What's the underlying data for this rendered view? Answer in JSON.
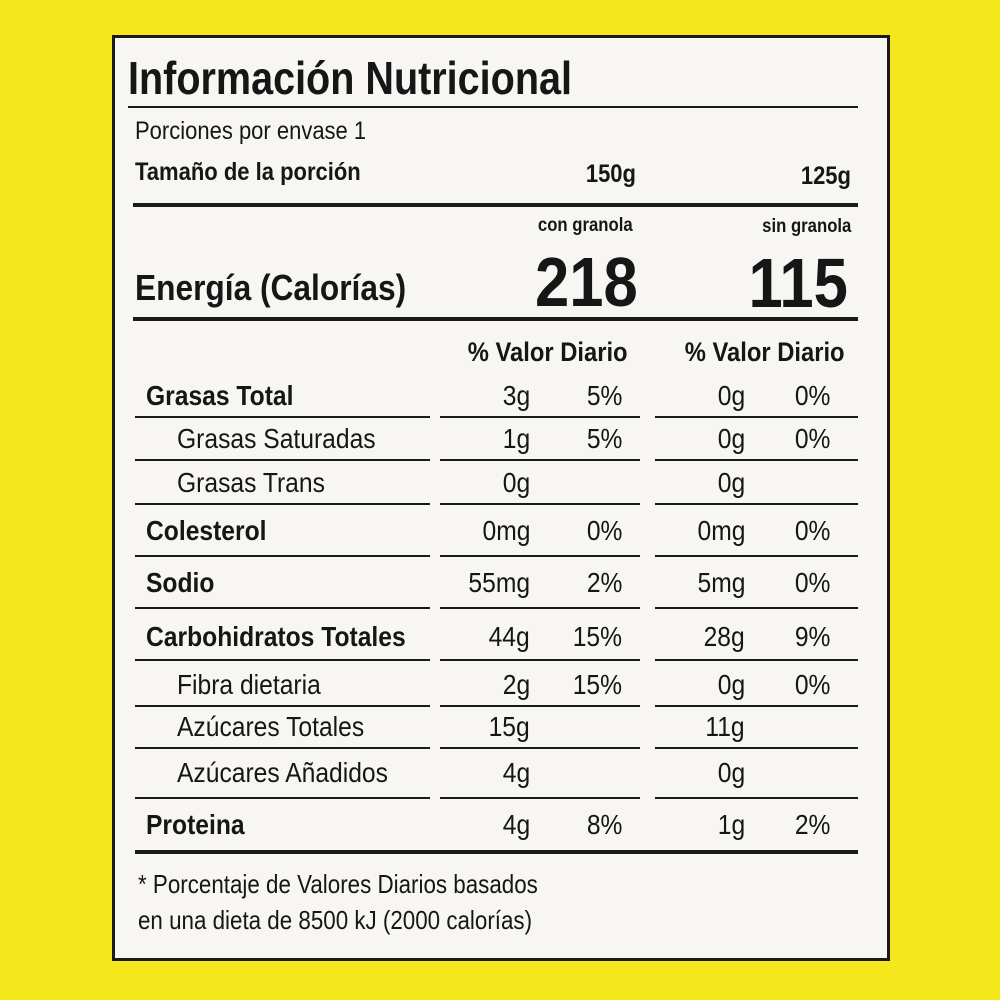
{
  "title": "Información Nutricional",
  "servings": "Porciones por envase 1",
  "serving_size": {
    "label": "Tamaño de la porción",
    "col1": "150g",
    "col2": "125g"
  },
  "columns": [
    "con granola",
    "sin granola"
  ],
  "energy": {
    "label": "Energía (Calorías)",
    "col1": "218",
    "col2": "115"
  },
  "dv_headers": [
    "% Valor Diario",
    "% Valor Diario"
  ],
  "rows": [
    {
      "label": "Grasas Total",
      "bold": true,
      "amount1": "3g",
      "dv1": "5%",
      "amount2": "0g",
      "dv2": "0%"
    },
    {
      "label": "Grasas Saturadas",
      "bold": false,
      "amount1": "1g",
      "dv1": "5%",
      "amount2": "0g",
      "dv2": "0%"
    },
    {
      "label": "Grasas Trans",
      "bold": false,
      "amount1": "0g",
      "amount2": "0g"
    },
    {
      "label": "Colesterol",
      "bold": true,
      "amount1": "0mg",
      "dv1": "0%",
      "amount2": "0mg",
      "dv2": "0%"
    },
    {
      "label": "Sodio",
      "bold": true,
      "amount1": "55mg",
      "dv1": "2%",
      "amount2": "5mg",
      "dv2": "0%"
    },
    {
      "label": "Carbohidratos Totales",
      "bold": true,
      "amount1": "44g",
      "dv1": "15%",
      "amount2": "28g",
      "dv2": "9%"
    },
    {
      "label": "Fibra dietaria",
      "bold": false,
      "amount1": "2g",
      "dv1": "15%",
      "amount2": "0g",
      "dv2": "0%"
    },
    {
      "label": "Azúcares Totales",
      "bold": false,
      "amount1": "15g",
      "amount2": "11g"
    },
    {
      "label": "Azúcares Añadidos",
      "bold": false,
      "amount1": "4g",
      "amount2": "0g"
    },
    {
      "label": "Proteina",
      "bold": true,
      "amount1": "4g",
      "dv1": "8%",
      "amount2": "1g",
      "dv2": "2%"
    }
  ],
  "footnote": [
    "* Porcentaje de Valores Diarios basados",
    "en una dieta de 8500 kJ (2000 calorías)"
  ]
}
